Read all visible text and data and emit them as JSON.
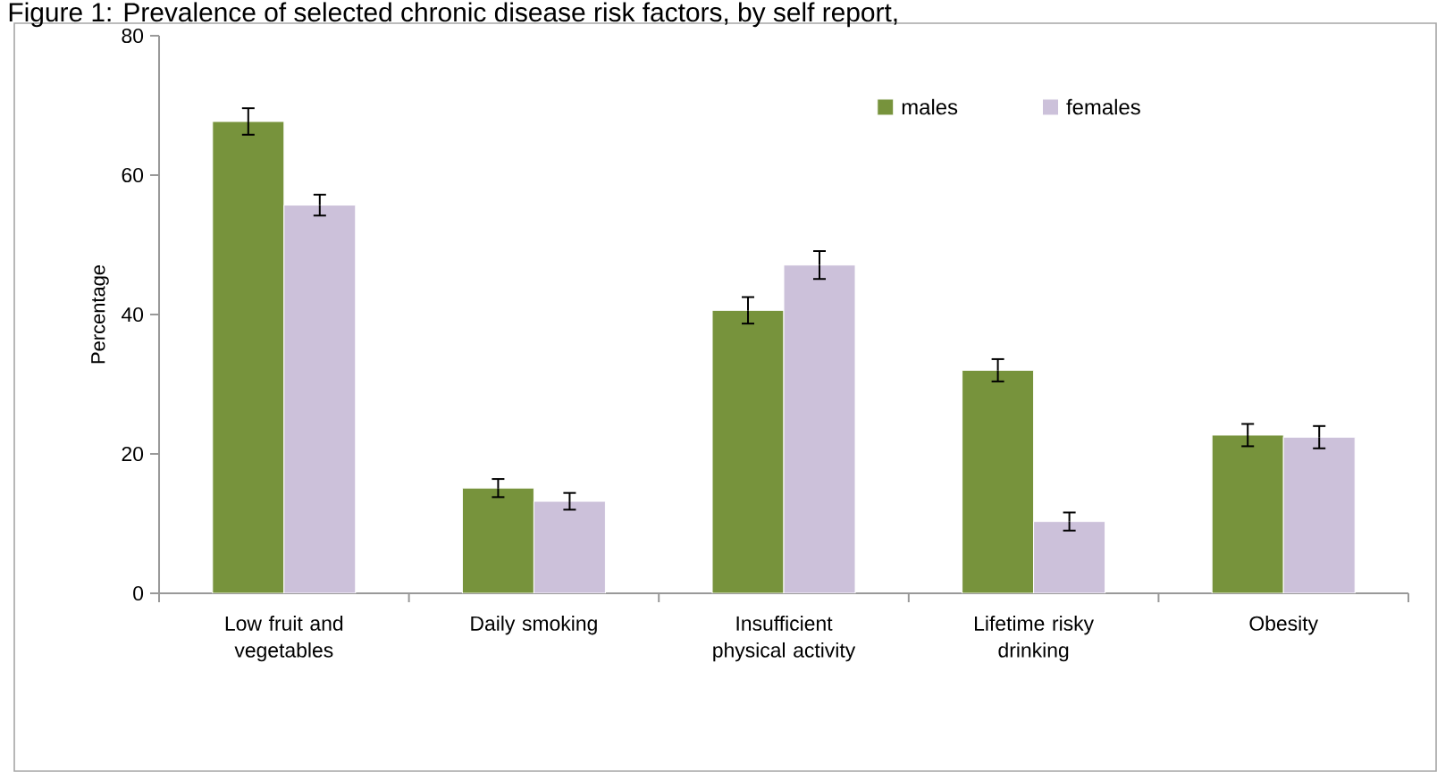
{
  "chart_data": {
    "type": "bar",
    "title": "Figure 1: Prevalence of selected chronic disease risk factors, by self report,",
    "ylabel": "Percentage",
    "categories": [
      "Low fruit and vegetables",
      "Daily smoking",
      "Insufficient physical activity",
      "Lifetime risky drinking",
      "Obesity"
    ],
    "series": [
      {
        "name": "males",
        "color": "#77933c",
        "values": [
          67.7,
          15.1,
          40.6,
          32.0,
          22.7
        ],
        "errors": [
          1.9,
          1.3,
          1.9,
          1.6,
          1.6
        ]
      },
      {
        "name": "females",
        "color": "#ccc1da",
        "values": [
          55.7,
          13.2,
          47.1,
          10.3,
          22.4
        ],
        "errors": [
          1.5,
          1.2,
          2.0,
          1.3,
          1.6
        ]
      }
    ],
    "ylim": [
      0,
      80
    ],
    "yticks": [
      0,
      20,
      40,
      60,
      80
    ],
    "grid": false,
    "legend": "top right"
  }
}
